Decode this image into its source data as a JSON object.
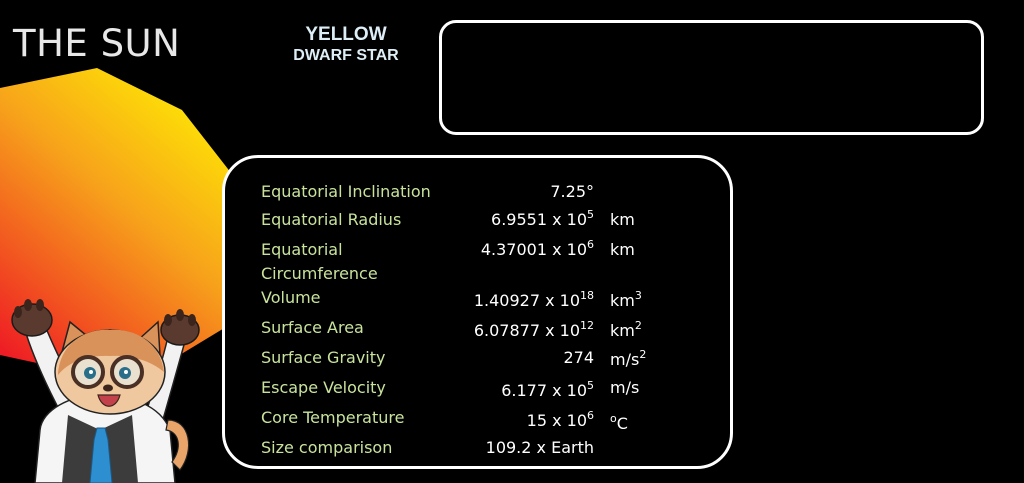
{
  "title": "THE SUN",
  "star_type": {
    "line1": "YELLOW",
    "line2": "DWARF STAR"
  },
  "colors": {
    "background": "#000000",
    "label_text": "#c9e39c",
    "value_text": "#ffffff",
    "title_text": "#e8e8e8",
    "star_type_text": "#ddeef6",
    "sun_gradient": [
      "#fff200",
      "#f7a21b",
      "#ee1c24"
    ]
  },
  "stats": [
    {
      "label": "Equatorial Inclination",
      "mantissa": "7.25°",
      "exponent": "",
      "unit_base": "",
      "unit_exp": "",
      "unit_tail": ""
    },
    {
      "label": "Equatorial Radius",
      "mantissa": "6.9551 x 10",
      "exponent": "5",
      "unit_base": "km",
      "unit_exp": "",
      "unit_tail": ""
    },
    {
      "label": "Equatorial",
      "label2": "Circumference",
      "mantissa": "4.37001 x 10",
      "exponent": "6",
      "unit_base": "km",
      "unit_exp": "",
      "unit_tail": ""
    },
    {
      "label": "Volume",
      "mantissa": "1.40927 x 10",
      "exponent": "18",
      "unit_base": "km",
      "unit_exp": "3",
      "unit_tail": ""
    },
    {
      "label": "Surface Area",
      "mantissa": "6.07877 x 10",
      "exponent": "12",
      "unit_base": "km",
      "unit_exp": "2",
      "unit_tail": ""
    },
    {
      "label": "Surface Gravity",
      "mantissa": "274",
      "exponent": "",
      "unit_base": "m/s",
      "unit_exp": "2",
      "unit_tail": ""
    },
    {
      "label": "Escape Velocity",
      "mantissa": "6.177 x 10",
      "exponent": "5",
      "unit_base": "m/s",
      "unit_exp": "",
      "unit_tail": ""
    },
    {
      "label": "Core Temperature",
      "mantissa": "15 x 10",
      "exponent": "6",
      "unit_base": "",
      "unit_exp": "o",
      "unit_tail": "C"
    },
    {
      "label": "Size comparison",
      "mantissa": "109.2 x Earth",
      "exponent": "",
      "unit_base": "",
      "unit_exp": "",
      "unit_tail": ""
    }
  ],
  "mascot": {
    "icon": "cat-scientist-mascot-icon"
  },
  "sun_shape": {
    "icon": "sun-polygon-icon"
  }
}
